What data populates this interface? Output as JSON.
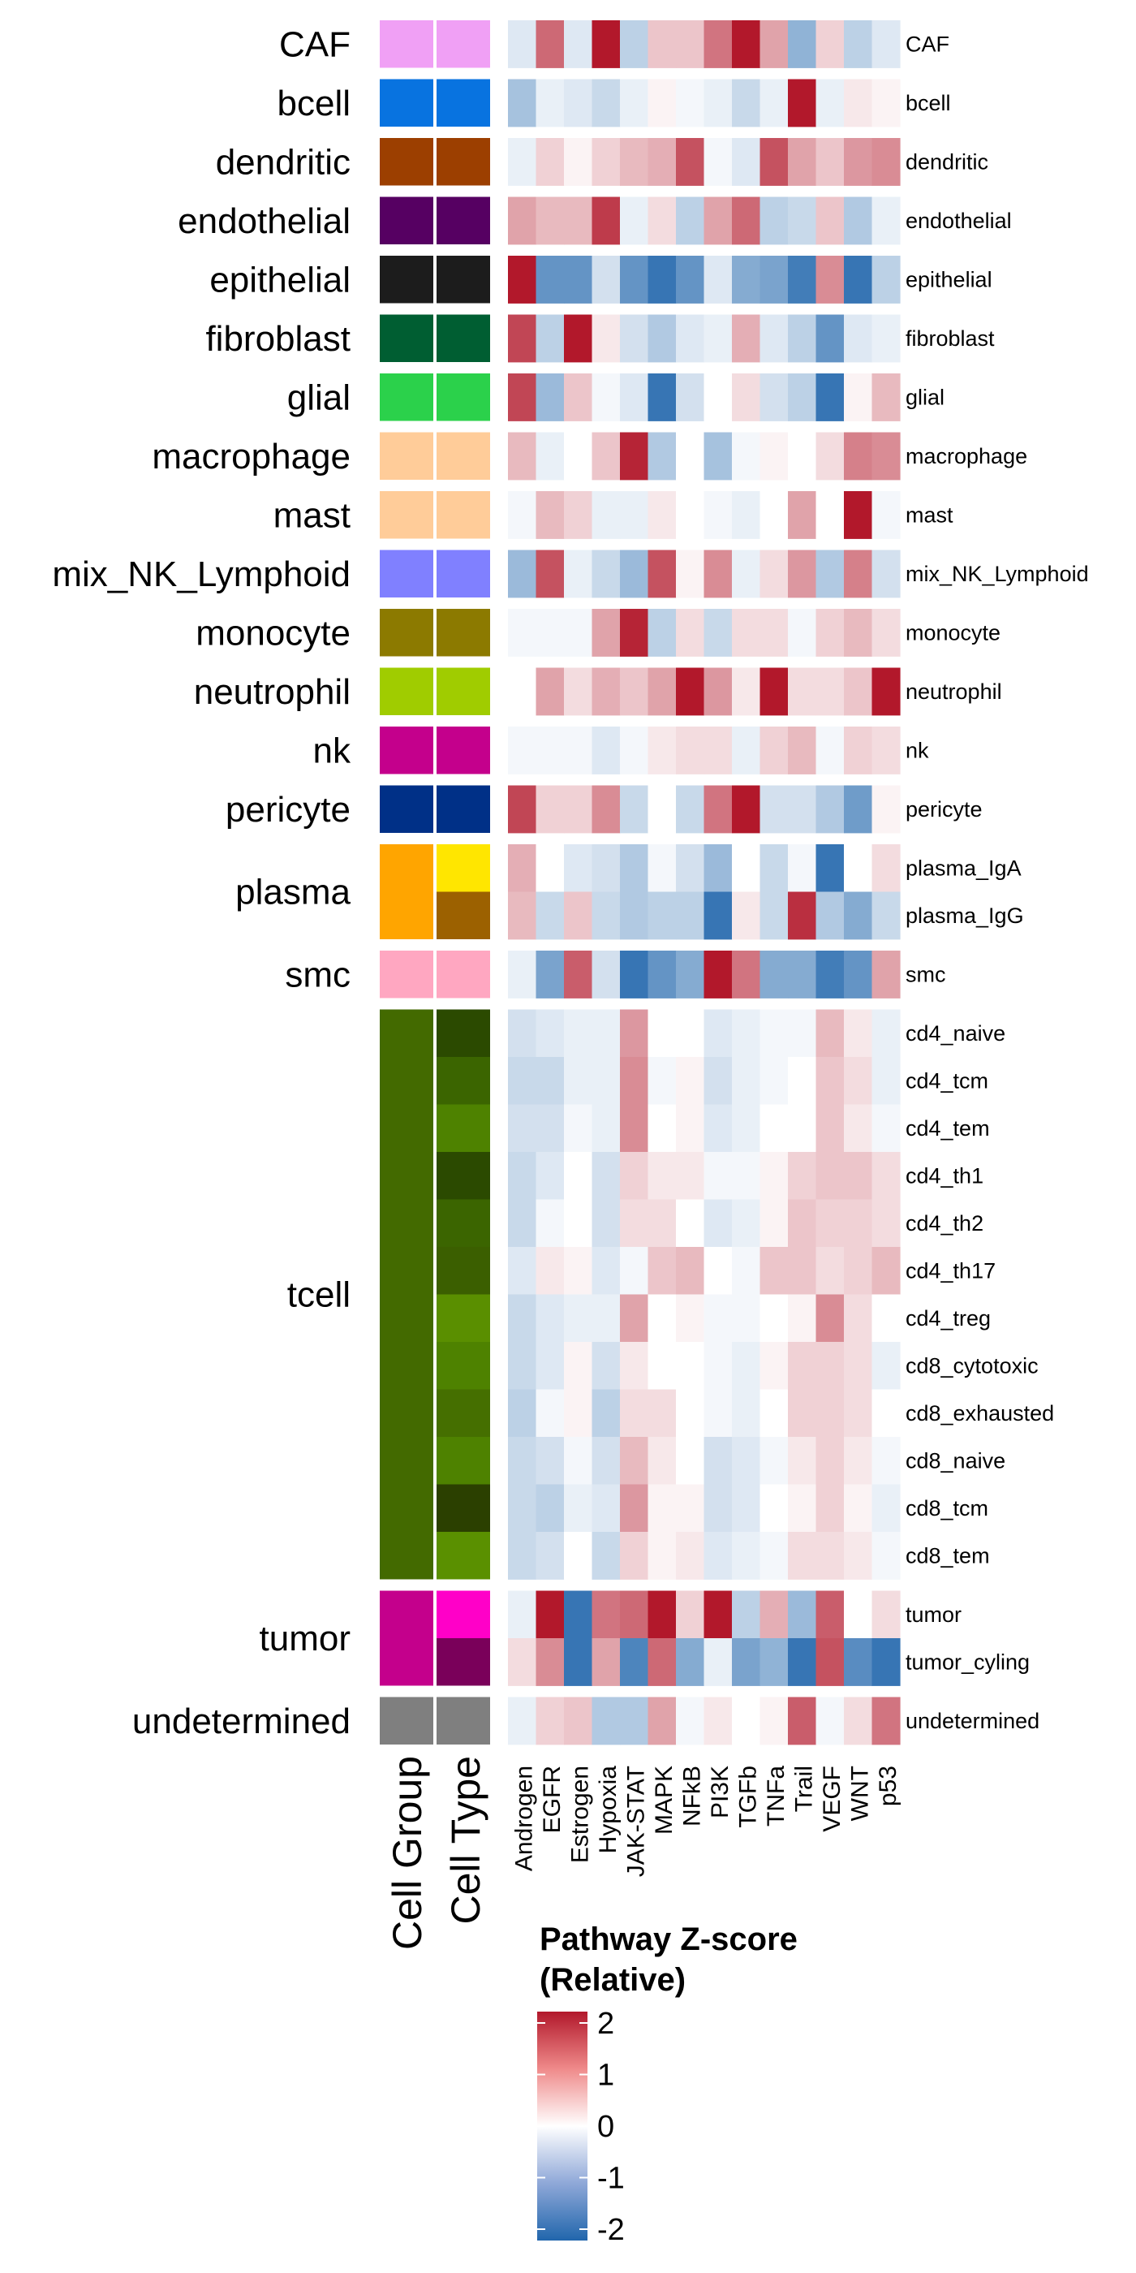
{
  "chart_data": {
    "type": "heatmap",
    "title": "",
    "columns": [
      "Androgen",
      "EGFR",
      "Estrogen",
      "Hypoxia",
      "JAK-STAT",
      "MAPK",
      "NFkB",
      "PI3K",
      "TGFb",
      "TNFa",
      "Trail",
      "VEGF",
      "WNT",
      "p53"
    ],
    "annotation_axis_labels": [
      "Cell Group",
      "Cell Type"
    ],
    "legend": {
      "title_line1": "Pathway Z-score",
      "title_line2": "(Relative)",
      "ticks": [
        "2",
        "1",
        "0",
        "-1",
        "-2"
      ],
      "range": [
        -2,
        2
      ],
      "low_color": "#2166ac",
      "mid_color": "#ffffff",
      "high_color": "#b2182b"
    },
    "groups": [
      {
        "name": "CAF",
        "color": "#f0a0f5",
        "rows": [
          {
            "label": "CAF",
            "type_color": "#f0a0f5",
            "values": [
              -0.3,
              1.3,
              -0.3,
              2,
              -0.6,
              0.5,
              0.5,
              1.2,
              2,
              0.8,
              -1,
              0.4,
              -0.6,
              -0.3
            ]
          }
        ]
      },
      {
        "name": "bcell",
        "color": "#0873e0",
        "rows": [
          {
            "label": "bcell",
            "type_color": "#0873e0",
            "values": [
              -0.8,
              -0.2,
              -0.3,
              -0.5,
              -0.2,
              0.1,
              -0.1,
              -0.2,
              -0.5,
              -0.2,
              2,
              -0.2,
              0.2,
              0.1
            ]
          }
        ]
      },
      {
        "name": "dendritic",
        "color": "#9c3f00",
        "rows": [
          {
            "label": "dendritic",
            "type_color": "#9c3f00",
            "values": [
              -0.2,
              0.4,
              0.1,
              0.4,
              0.6,
              0.7,
              1.5,
              -0.1,
              -0.3,
              1.5,
              0.8,
              0.5,
              0.9,
              1
            ]
          }
        ]
      },
      {
        "name": "endothelial",
        "color": "#560062",
        "rows": [
          {
            "label": "endothelial",
            "type_color": "#560062",
            "values": [
              0.8,
              0.6,
              0.6,
              1.7,
              -0.2,
              0.3,
              -0.6,
              0.8,
              1.3,
              -0.6,
              -0.5,
              0.5,
              -0.7,
              -0.2
            ]
          }
        ]
      },
      {
        "name": "epithelial",
        "color": "#1c1c1c",
        "rows": [
          {
            "label": "epithelial",
            "type_color": "#1c1c1c",
            "values": [
              2,
              -1.4,
              -1.4,
              -0.4,
              -1.4,
              -1.8,
              -1.4,
              -0.3,
              -1.1,
              -1.2,
              -1.7,
              1,
              -1.8,
              -0.6
            ]
          }
        ]
      },
      {
        "name": "fibroblast",
        "color": "#005e32",
        "rows": [
          {
            "label": "fibroblast",
            "type_color": "#005e32",
            "values": [
              1.6,
              -0.6,
              2,
              0.2,
              -0.4,
              -0.7,
              -0.3,
              -0.2,
              0.7,
              -0.3,
              -0.6,
              -1.4,
              -0.3,
              -0.2
            ]
          }
        ]
      },
      {
        "name": "glial",
        "color": "#2bd14b",
        "rows": [
          {
            "label": "glial",
            "type_color": "#2bd14b",
            "values": [
              1.6,
              -0.9,
              0.5,
              -0.1,
              -0.3,
              -1.8,
              -0.4,
              0,
              0.3,
              -0.4,
              -0.6,
              -1.8,
              0.1,
              0.6
            ]
          }
        ]
      },
      {
        "name": "macrophage",
        "color": "#ffcc99",
        "rows": [
          {
            "label": "macrophage",
            "type_color": "#ffcc99",
            "values": [
              0.6,
              -0.2,
              0,
              0.5,
              1.9,
              -0.7,
              0,
              -0.8,
              -0.1,
              0.1,
              0,
              0.3,
              1.1,
              1
            ]
          }
        ]
      },
      {
        "name": "mast",
        "color": "#ffcc99",
        "rows": [
          {
            "label": "mast",
            "type_color": "#ffcc99",
            "values": [
              -0.1,
              0.6,
              0.4,
              -0.2,
              -0.2,
              0.2,
              0,
              -0.1,
              -0.2,
              0,
              0.8,
              0,
              2,
              -0.1
            ]
          }
        ]
      },
      {
        "name": "mix_NK_Lymphoid",
        "color": "#8080ff",
        "rows": [
          {
            "label": "mix_NK_Lymphoid",
            "type_color": "#8080ff",
            "values": [
              -0.9,
              1.5,
              -0.2,
              -0.5,
              -0.9,
              1.5,
              0.1,
              1,
              -0.2,
              0.3,
              0.9,
              -0.7,
              1.1,
              -0.4
            ]
          }
        ]
      },
      {
        "name": "monocyte",
        "color": "#8c7a00",
        "rows": [
          {
            "label": "monocyte",
            "type_color": "#8c7a00",
            "values": [
              -0.1,
              -0.1,
              -0.1,
              0.8,
              1.9,
              -0.6,
              0.3,
              -0.5,
              0.3,
              0.3,
              -0.1,
              0.4,
              0.6,
              0.3
            ]
          }
        ]
      },
      {
        "name": "neutrophil",
        "color": "#a0cc00",
        "rows": [
          {
            "label": "neutrophil",
            "type_color": "#a0cc00",
            "values": [
              0,
              0.8,
              0.3,
              0.7,
              0.5,
              0.8,
              2,
              0.9,
              0.2,
              2,
              0.3,
              0.3,
              0.5,
              2
            ]
          }
        ]
      },
      {
        "name": "nk",
        "color": "#c4008c",
        "rows": [
          {
            "label": "nk",
            "type_color": "#c4008c",
            "values": [
              -0.1,
              -0.1,
              -0.1,
              -0.3,
              -0.1,
              0.2,
              0.3,
              0.3,
              -0.2,
              0.4,
              0.6,
              -0.1,
              0.4,
              0.3
            ]
          }
        ]
      },
      {
        "name": "pericyte",
        "color": "#003087",
        "rows": [
          {
            "label": "pericyte",
            "type_color": "#003087",
            "values": [
              1.6,
              0.4,
              0.4,
              1,
              -0.5,
              0,
              -0.5,
              1.2,
              2,
              -0.4,
              -0.4,
              -0.7,
              -1.3,
              0.1
            ]
          }
        ]
      },
      {
        "name": "plasma",
        "color": "#ffa500",
        "rows": [
          {
            "label": "plasma_IgA",
            "type_color": "#ffe600",
            "values": [
              0.7,
              0,
              -0.3,
              -0.4,
              -0.7,
              -0.1,
              -0.4,
              -0.9,
              0,
              -0.5,
              -0.1,
              -1.8,
              0,
              0.3
            ]
          },
          {
            "label": "plasma_IgG",
            "type_color": "#9c6100",
            "values": [
              0.6,
              -0.5,
              0.5,
              -0.5,
              -0.7,
              -0.6,
              -0.6,
              -1.8,
              0.2,
              -0.5,
              1.8,
              -0.7,
              -1.1,
              -0.5
            ]
          }
        ]
      },
      {
        "name": "smc",
        "color": "#ffa7c1",
        "rows": [
          {
            "label": "smc",
            "type_color": "#ffa7c1",
            "values": [
              -0.2,
              -1.2,
              1.4,
              -0.4,
              -1.8,
              -1.4,
              -1.1,
              2,
              1.2,
              -1.1,
              -1.1,
              -1.7,
              -1.4,
              0.8
            ]
          }
        ]
      },
      {
        "name": "tcell",
        "color": "#436a00",
        "rows": [
          {
            "label": "cd4_naive",
            "type_color": "#2b4a00",
            "values": [
              -0.4,
              -0.3,
              -0.2,
              -0.2,
              0.9,
              0,
              0,
              -0.3,
              -0.2,
              -0.1,
              -0.1,
              0.6,
              0.2,
              -0.2
            ]
          },
          {
            "label": "cd4_tcm",
            "type_color": "#3b6500",
            "values": [
              -0.5,
              -0.5,
              -0.2,
              -0.2,
              1,
              -0.1,
              0.1,
              -0.4,
              -0.2,
              -0.1,
              0,
              0.5,
              0.3,
              -0.2
            ]
          },
          {
            "label": "cd4_tem",
            "type_color": "#4e8200",
            "values": [
              -0.4,
              -0.4,
              -0.1,
              -0.2,
              1,
              0,
              0.1,
              -0.3,
              -0.2,
              0,
              0,
              0.5,
              0.2,
              -0.1
            ]
          },
          {
            "label": "cd4_th1",
            "type_color": "#2b4a00",
            "values": [
              -0.5,
              -0.3,
              0,
              -0.4,
              0.4,
              0.2,
              0.2,
              -0.1,
              -0.1,
              0.1,
              0.4,
              0.5,
              0.5,
              0.3
            ]
          },
          {
            "label": "cd4_th2",
            "type_color": "#3b6500",
            "values": [
              -0.5,
              -0.1,
              0,
              -0.4,
              0.3,
              0.3,
              0,
              -0.3,
              -0.2,
              0.1,
              0.5,
              0.4,
              0.4,
              0.3
            ]
          },
          {
            "label": "cd4_th17",
            "type_color": "#3b5f00",
            "values": [
              -0.3,
              0.2,
              0.1,
              -0.3,
              -0.1,
              0.5,
              0.6,
              0,
              -0.1,
              0.5,
              0.5,
              0.3,
              0.4,
              0.6
            ]
          },
          {
            "label": "cd4_treg",
            "type_color": "#5a8f00",
            "values": [
              -0.5,
              -0.3,
              -0.2,
              -0.2,
              0.8,
              0,
              0.1,
              -0.1,
              -0.1,
              0,
              0.1,
              1,
              0.3,
              0
            ]
          },
          {
            "label": "cd8_cytotoxic",
            "type_color": "#4e8200",
            "values": [
              -0.5,
              -0.3,
              0.1,
              -0.4,
              0.2,
              0,
              0,
              -0.1,
              -0.2,
              0.1,
              0.4,
              0.4,
              0.3,
              -0.2
            ]
          },
          {
            "label": "cd8_exhausted",
            "type_color": "#456f00",
            "values": [
              -0.6,
              -0.1,
              0.1,
              -0.6,
              0.3,
              0.3,
              0,
              -0.1,
              -0.2,
              0,
              0.4,
              0.4,
              0.3,
              0
            ]
          },
          {
            "label": "cd8_naive",
            "type_color": "#4e8200",
            "values": [
              -0.5,
              -0.4,
              -0.1,
              -0.4,
              0.6,
              0.2,
              0,
              -0.4,
              -0.3,
              -0.1,
              0.2,
              0.4,
              0.2,
              -0.1
            ]
          },
          {
            "label": "cd8_tcm",
            "type_color": "#2b4000",
            "values": [
              -0.5,
              -0.6,
              -0.2,
              -0.3,
              0.9,
              0.1,
              0.1,
              -0.4,
              -0.3,
              0,
              0.1,
              0.4,
              0.1,
              -0.2
            ]
          },
          {
            "label": "cd8_tem",
            "type_color": "#5a9000",
            "values": [
              -0.5,
              -0.4,
              0,
              -0.5,
              0.4,
              0.1,
              0.2,
              -0.3,
              -0.2,
              -0.1,
              0.3,
              0.3,
              0.2,
              -0.1
            ]
          }
        ]
      },
      {
        "name": "tumor",
        "color": "#c4008c",
        "rows": [
          {
            "label": "tumor",
            "type_color": "#ff00c8",
            "values": [
              -0.2,
              2,
              -1.8,
              1.2,
              1.3,
              2,
              0.4,
              2,
              -0.6,
              0.7,
              -0.9,
              1.4,
              0,
              0.3
            ]
          },
          {
            "label": "tumor_cyling",
            "type_color": "#7a005a",
            "values": [
              0.3,
              1,
              -1.8,
              0.8,
              -1.6,
              1.3,
              -1.1,
              -0.2,
              -1.2,
              -1,
              -1.8,
              1.5,
              -1.5,
              -1.8
            ]
          }
        ]
      },
      {
        "name": "undetermined",
        "color": "#7f7f7f",
        "rows": [
          {
            "label": "undetermined",
            "type_color": "#7f7f7f",
            "values": [
              -0.2,
              0.4,
              0.5,
              -0.7,
              -0.7,
              0.8,
              -0.1,
              0.2,
              0,
              0.1,
              1.4,
              -0.1,
              0.3,
              1.2
            ]
          }
        ]
      }
    ]
  }
}
